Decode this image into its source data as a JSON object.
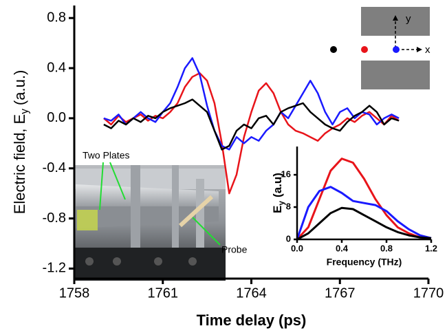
{
  "chart_data": [
    {
      "type": "line",
      "x_label": "Time delay (ps)",
      "y_label": [
        "Electric field, E",
        "y",
        "(a.u.)"
      ],
      "xlim": [
        1758,
        1770
      ],
      "xticks": [
        1758,
        1761,
        1764,
        1767,
        1770
      ],
      "ylim": [
        -1.28,
        0.9
      ],
      "yticks": [
        0.8,
        0.4,
        {
          "value": 0,
          "label": "0.0"
        },
        -0.4,
        -0.8,
        -1.2
      ],
      "x": [
        1759,
        1759.25,
        1759.5,
        1759.75,
        1760,
        1760.25,
        1760.5,
        1760.75,
        1761,
        1761.25,
        1761.5,
        1761.75,
        1762,
        1762.25,
        1762.5,
        1762.75,
        1763,
        1763.25,
        1763.5,
        1763.75,
        1764,
        1764.25,
        1764.5,
        1764.75,
        1765,
        1765.25,
        1765.5,
        1765.75,
        1766,
        1766.25,
        1766.5,
        1766.75,
        1767,
        1767.25,
        1767.5,
        1767.75,
        1768,
        1768.25,
        1768.5,
        1768.75,
        1769
      ],
      "series": [
        {
          "color": "#e8141a",
          "values": [
            0.0,
            -0.05,
            0.02,
            -0.03,
            0.0,
            0.03,
            -0.02,
            0.02,
            0.0,
            0.05,
            0.12,
            0.25,
            0.33,
            0.36,
            0.3,
            0.12,
            -0.2,
            -0.6,
            -0.45,
            -0.15,
            0.05,
            0.22,
            0.28,
            0.2,
            0.05,
            -0.05,
            -0.1,
            -0.12,
            -0.15,
            -0.18,
            -0.12,
            -0.08,
            -0.05,
            0.0,
            -0.03,
            0.02,
            0.05,
            0.0,
            -0.05,
            0.02,
            -0.02
          ]
        },
        {
          "color": "#1a1aff",
          "values": [
            0.0,
            -0.02,
            0.03,
            -0.05,
            0.0,
            0.05,
            0.0,
            -0.03,
            0.05,
            0.12,
            0.25,
            0.4,
            0.48,
            0.35,
            0.1,
            -0.1,
            -0.22,
            -0.25,
            -0.15,
            -0.2,
            -0.15,
            -0.18,
            -0.1,
            -0.05,
            0.05,
            0.0,
            0.1,
            0.2,
            0.3,
            0.2,
            0.05,
            -0.05,
            0.05,
            0.08,
            0.0,
            0.05,
            0.03,
            -0.05,
            0.0,
            0.03,
            0.0
          ]
        },
        {
          "color": "#000000",
          "values": [
            -0.05,
            -0.08,
            -0.02,
            -0.05,
            0.0,
            -0.03,
            0.02,
            0.0,
            0.05,
            0.08,
            0.1,
            0.12,
            0.15,
            0.1,
            0.05,
            -0.1,
            -0.25,
            -0.22,
            -0.1,
            -0.05,
            -0.08,
            0.0,
            0.02,
            -0.05,
            0.05,
            0.08,
            0.1,
            0.12,
            0.05,
            0.0,
            -0.05,
            -0.08,
            -0.1,
            -0.03,
            0.02,
            0.05,
            0.1,
            0.05,
            -0.05,
            0.0,
            -0.02
          ]
        }
      ],
      "annotations": {
        "photo_plates": "Two Plates",
        "photo_probe": "Probe",
        "axis_y": "y",
        "axis_x": "x"
      }
    },
    {
      "type": "line",
      "x_label": "Frequency (THz)",
      "y_label": [
        "E",
        "y",
        "(a.u)"
      ],
      "xlim": [
        0,
        1.2
      ],
      "xticks": [
        {
          "value": 0,
          "label": "0.0"
        },
        0.4,
        0.8,
        1.2
      ],
      "ylim": [
        0,
        23
      ],
      "yticks": [
        0,
        8,
        16
      ],
      "x": [
        0,
        0.1,
        0.2,
        0.3,
        0.4,
        0.5,
        0.6,
        0.7,
        0.8,
        0.9,
        1.0,
        1.1,
        1.2
      ],
      "series": [
        {
          "color": "#e8141a",
          "values": [
            0,
            3,
            10,
            17,
            20,
            19,
            15,
            10,
            6,
            3,
            1.5,
            0.5,
            0.2
          ]
        },
        {
          "color": "#1a1aff",
          "values": [
            0,
            8,
            12,
            13,
            11.5,
            9.5,
            9,
            8.5,
            7,
            4.5,
            2.5,
            1,
            0.3
          ]
        },
        {
          "color": "#000000",
          "values": [
            0,
            1.5,
            4,
            6.5,
            7.8,
            7.5,
            6,
            4.5,
            3,
            1.8,
            1,
            0.5,
            0.3
          ]
        }
      ]
    }
  ]
}
